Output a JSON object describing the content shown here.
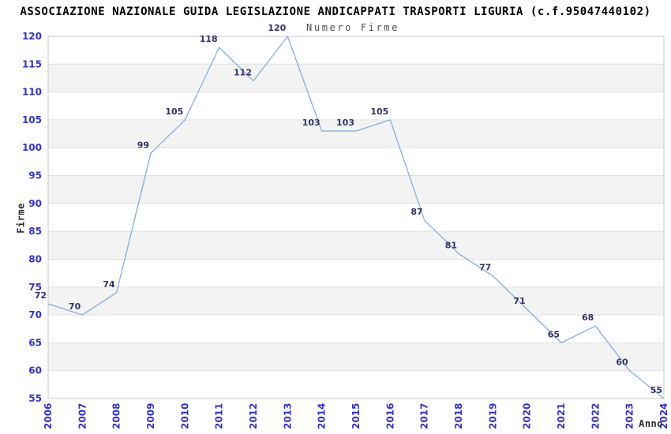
{
  "page": {
    "title": "ASSOCIAZIONE NAZIONALE GUIDA LEGISLAZIONE ANDICAPPATI TRASPORTI LIGURIA (c.f.95047440102)"
  },
  "chart_data": {
    "type": "line",
    "title": "Numero Firme",
    "xlabel": "Anno",
    "ylabel": "Firme",
    "categories": [
      "2006",
      "2007",
      "2008",
      "2009",
      "2010",
      "2011",
      "2012",
      "2013",
      "2014",
      "2015",
      "2016",
      "2017",
      "2018",
      "2019",
      "2020",
      "2021",
      "2022",
      "2023",
      "2024"
    ],
    "values": [
      72,
      70,
      74,
      99,
      105,
      118,
      112,
      120,
      103,
      103,
      105,
      87,
      81,
      77,
      71,
      65,
      68,
      60,
      55
    ],
    "ylim": [
      55,
      120
    ],
    "ytick_step": 5,
    "grid": "horizontal gridlines with alternating shaded bands",
    "legend": "none",
    "data_labels_shown": true,
    "x_tick_rotation_deg": -90,
    "colors": {
      "line": "#85ade0",
      "tick_labels": "#3232d0",
      "data_labels": "#32326e",
      "band": "#f3f3f3",
      "gridline": "#e0e0e0",
      "border": "#c9c9c9",
      "title": "#000000",
      "subtitle": "#4d4d4d",
      "axis_titles": "#2b2b2b"
    }
  }
}
